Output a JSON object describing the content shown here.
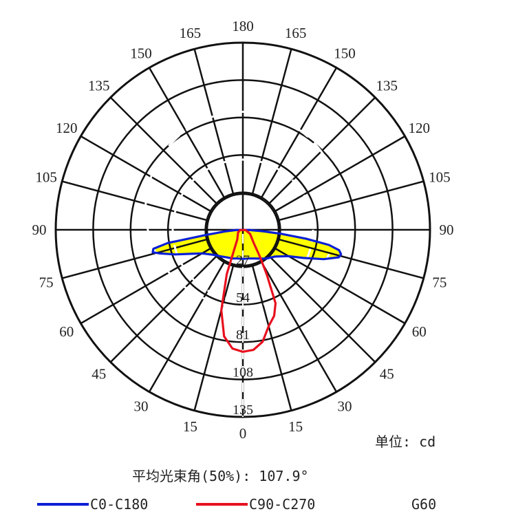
{
  "chart_data": {
    "type": "polar",
    "unit_label": "单位: cd",
    "beam_angle_label": "平均光束角(50%): 107.9°",
    "radial_axis": {
      "max": 135,
      "ring_labels": [
        "27",
        "54",
        "81",
        "108",
        "135"
      ]
    },
    "angle_labels": {
      "right": [
        "0",
        "15",
        "30",
        "45",
        "60",
        "75",
        "90",
        "105",
        "120",
        "135",
        "150",
        "165",
        "180"
      ],
      "left": [
        "15",
        "30",
        "45",
        "60",
        "75",
        "90",
        "105",
        "120",
        "135",
        "150",
        "165"
      ]
    },
    "grid": true,
    "legend_position": "bottom",
    "series": [
      {
        "name": "C0-C180",
        "color": "#0a1fd6",
        "fill": "#ffff00",
        "points": [
          [
            -88,
            5
          ],
          [
            -85,
            12
          ],
          [
            -82,
            27
          ],
          [
            -80,
            55
          ],
          [
            -78,
            66
          ],
          [
            -76,
            67
          ],
          [
            -74,
            62
          ],
          [
            -70,
            52
          ],
          [
            -65,
            41
          ],
          [
            -60,
            34
          ],
          [
            -50,
            28
          ],
          [
            -40,
            25
          ],
          [
            -30,
            23
          ],
          [
            -20,
            22
          ],
          [
            -10,
            21
          ],
          [
            0,
            21
          ],
          [
            10,
            21
          ],
          [
            20,
            22
          ],
          [
            30,
            24
          ],
          [
            40,
            27
          ],
          [
            50,
            30
          ],
          [
            60,
            38
          ],
          [
            65,
            48
          ],
          [
            70,
            62
          ],
          [
            74,
            72
          ],
          [
            76,
            73
          ],
          [
            78,
            71
          ],
          [
            80,
            63
          ],
          [
            82,
            46
          ],
          [
            84,
            28
          ],
          [
            86,
            14
          ],
          [
            88,
            5
          ]
        ]
      },
      {
        "name": "C90-C270",
        "color": "#e8101e",
        "points": [
          [
            -85,
            2
          ],
          [
            -60,
            4
          ],
          [
            -30,
            8
          ],
          [
            -20,
            34
          ],
          [
            -15,
            60
          ],
          [
            -10,
            78
          ],
          [
            -5,
            86
          ],
          [
            0,
            88
          ],
          [
            5,
            87
          ],
          [
            10,
            82
          ],
          [
            15,
            72
          ],
          [
            20,
            66
          ],
          [
            24,
            58
          ],
          [
            28,
            37
          ],
          [
            32,
            24
          ],
          [
            40,
            12
          ],
          [
            60,
            6
          ],
          [
            85,
            2
          ]
        ]
      }
    ],
    "extra_legend_entries": [
      "G60"
    ]
  }
}
